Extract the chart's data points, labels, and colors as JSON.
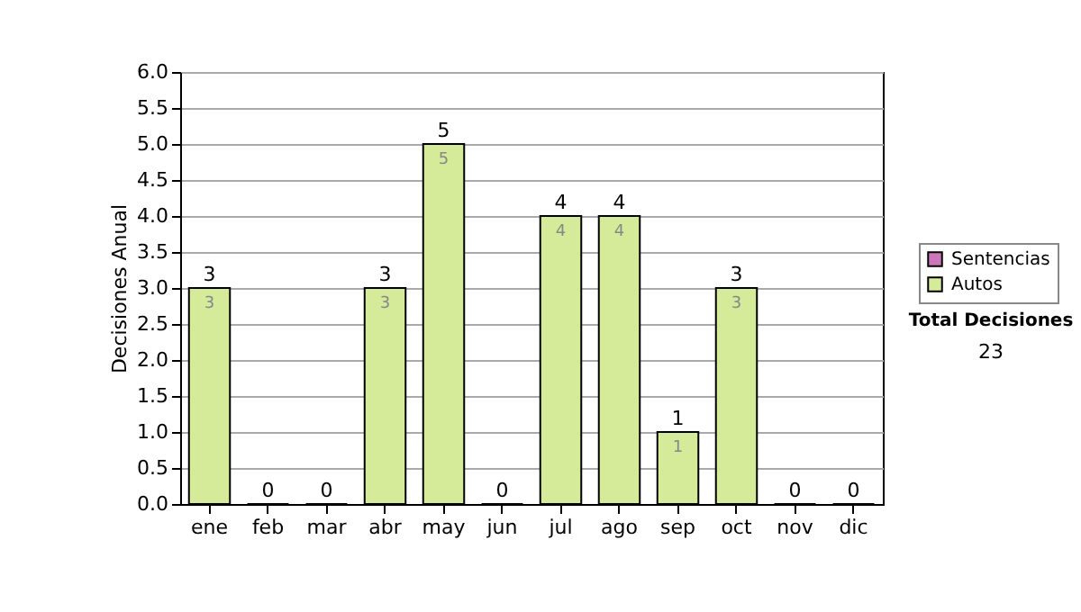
{
  "chart_data": {
    "type": "bar",
    "stacked": true,
    "ylabel": "Decisiones Anual",
    "categories": [
      "ene",
      "feb",
      "mar",
      "abr",
      "may",
      "jun",
      "jul",
      "ago",
      "sep",
      "oct",
      "nov",
      "dic"
    ],
    "series": [
      {
        "name": "Sentencias",
        "color": "#cc77bb",
        "values": [
          0,
          0,
          0,
          0,
          0,
          0,
          0,
          0,
          0,
          0,
          0,
          0
        ]
      },
      {
        "name": "Autos",
        "color": "#d5eb99",
        "values": [
          3,
          0,
          0,
          3,
          5,
          0,
          4,
          4,
          1,
          3,
          0,
          0
        ],
        "value_labels": [
          "3",
          null,
          null,
          "3",
          "5",
          null,
          "4",
          "4",
          "1",
          "3",
          null,
          null
        ]
      }
    ],
    "totals": [
      "3",
      "0",
      "0",
      "3",
      "5",
      "0",
      "4",
      "4",
      "1",
      "3",
      "0",
      "0"
    ],
    "ylim": [
      0,
      6
    ],
    "yticks": [
      {
        "value": 0,
        "label": "0.0"
      },
      {
        "value": 0.5,
        "label": "0.5"
      },
      {
        "value": 1,
        "label": "1.0"
      },
      {
        "value": 1.5,
        "label": "1.5"
      },
      {
        "value": 2,
        "label": "2.0"
      },
      {
        "value": 2.5,
        "label": "2.5"
      },
      {
        "value": 3,
        "label": "3.0"
      },
      {
        "value": 3.5,
        "label": "3.5"
      },
      {
        "value": 4,
        "label": "4.0"
      },
      {
        "value": 4.5,
        "label": "4.5"
      },
      {
        "value": 5,
        "label": "5.0"
      },
      {
        "value": 5.5,
        "label": "5.5"
      },
      {
        "value": 6,
        "label": "6.0"
      }
    ],
    "grid": "y",
    "legend": "right",
    "annotations": [
      "Total Decisiones",
      "23"
    ]
  }
}
